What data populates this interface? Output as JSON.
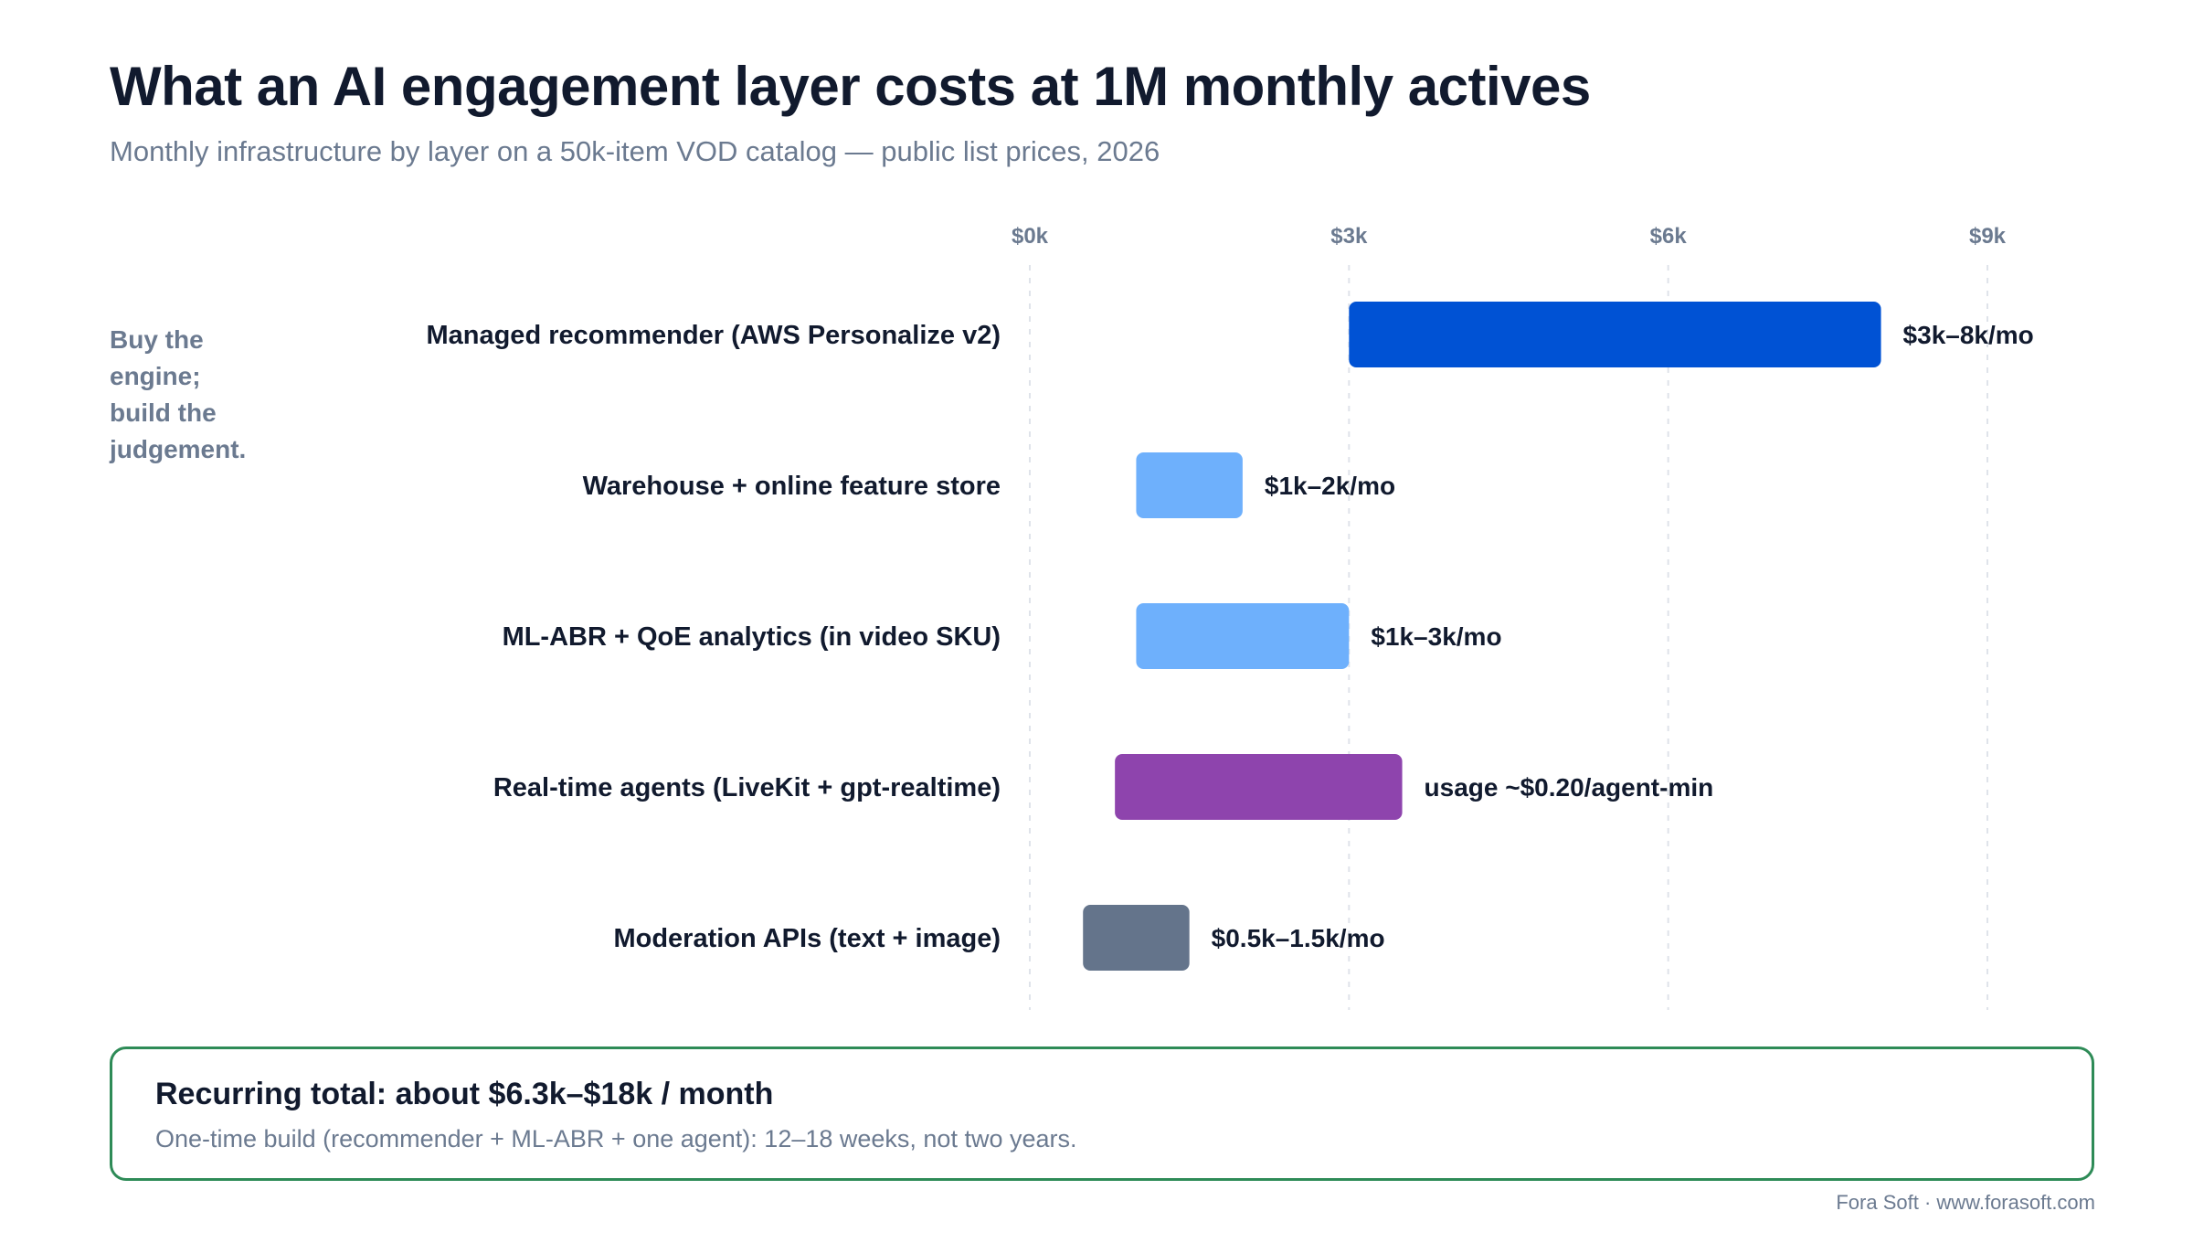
{
  "header": {
    "title": "What an AI engagement layer costs at 1M monthly actives",
    "subtitle": "Monthly infrastructure by layer on a 50k-item VOD catalog — public list prices, 2026"
  },
  "side_note": [
    "Buy the",
    "engine;",
    "build the",
    "judgement."
  ],
  "chart_data": {
    "type": "bar",
    "orientation": "horizontal",
    "title": "What an AI engagement layer costs at 1M monthly actives",
    "subtitle": "Monthly infrastructure by layer on a 50k-item VOD catalog — public list prices, 2026",
    "xlabel": "",
    "ylabel": "",
    "xlim": [
      0,
      9
    ],
    "x_unit": "$k per month",
    "x_ticks": [
      0,
      3,
      6,
      9
    ],
    "x_tick_labels": [
      "$0k",
      "$3k",
      "$6k",
      "$9k"
    ],
    "axis_position": "top",
    "grid": true,
    "grid_style": "dashed vertical",
    "legend": "none",
    "categories": [
      "Managed recommender (AWS Personalize v2)",
      "Warehouse + online feature store",
      "ML-ABR + QoE analytics (in video SKU)",
      "Real-time agents (LiveKit + gpt-realtime)",
      "Moderation APIs (text + image)"
    ],
    "ranges": [
      [
        3,
        8
      ],
      [
        1,
        2
      ],
      [
        1,
        3
      ],
      [
        0.8,
        3.5
      ],
      [
        0.5,
        1.5
      ]
    ],
    "value_labels": [
      "$3k–8k/mo",
      "$1k–2k/mo",
      "$1k–3k/mo",
      "usage ~$0.20/agent-min",
      "$0.5k–1.5k/mo"
    ],
    "colors": [
      "#0052d4",
      "#6eb0fc",
      "#6eb0fc",
      "#8e44ad",
      "#64748b"
    ]
  },
  "summary": {
    "title": "Recurring total: about $6.3k–$18k / month",
    "note": "One-time build (recommender + ML-ABR + one agent): 12–18 weeks, not two years.",
    "border_color": "#2e8b57"
  },
  "footer": "Fora Soft · www.forasoft.com"
}
